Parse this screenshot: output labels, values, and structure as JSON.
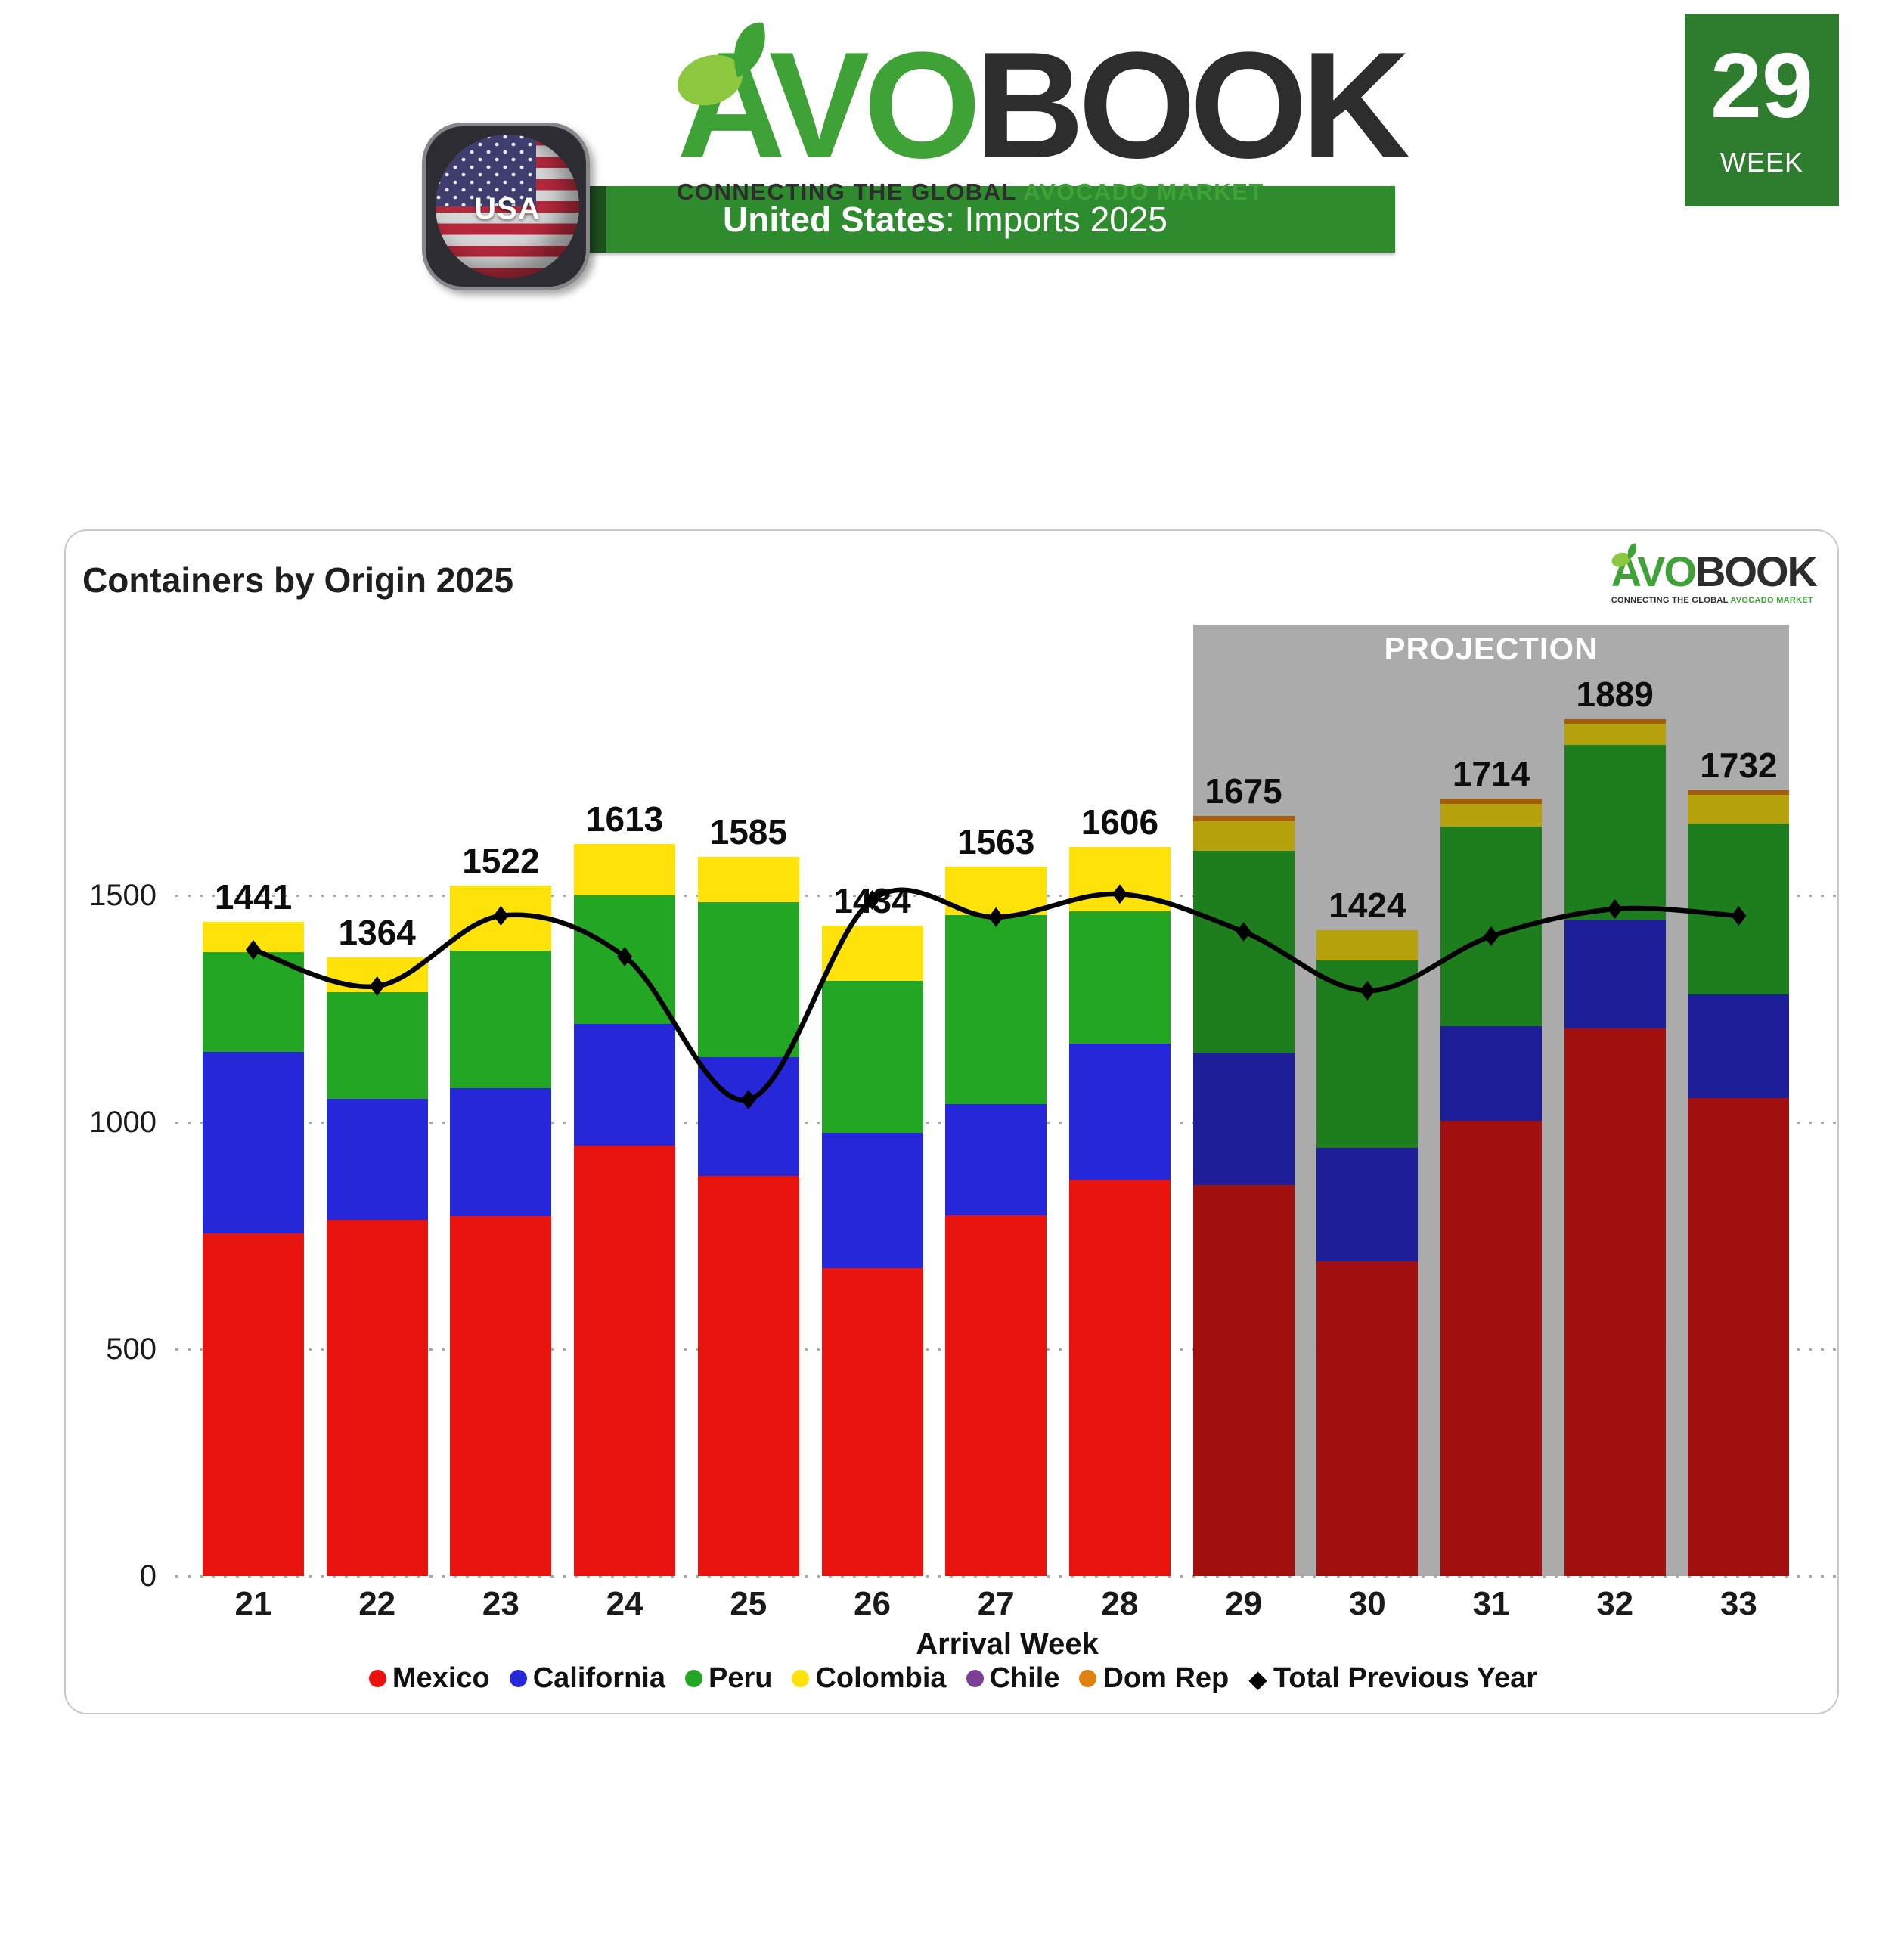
{
  "header": {
    "logo": {
      "avo": "AVO",
      "book": "BOOK",
      "tagline_dark": "CONNECTING THE GLOBAL",
      "tagline_green": "AVOCADO MARKET"
    },
    "banner": {
      "bold": "United States",
      "rest": ": Imports 2025"
    },
    "flag_label": "USA",
    "week_badge": {
      "number": "29",
      "label": "WEEK"
    }
  },
  "chart_data": {
    "type": "bar",
    "stacked": true,
    "title": "Containers by Origin 2025",
    "xlabel": "Arrival Week",
    "ylabel": "",
    "ylim": [
      0,
      2100
    ],
    "yticks": [
      0,
      500,
      1000,
      1500
    ],
    "grid": "dotted-horizontal",
    "legend_position": "bottom",
    "categories": [
      21,
      22,
      23,
      24,
      25,
      26,
      27,
      28,
      29,
      30,
      31,
      32,
      33
    ],
    "totals": [
      1441,
      1364,
      1522,
      1613,
      1585,
      1434,
      1563,
      1606,
      1675,
      1424,
      1714,
      1889,
      1732
    ],
    "projection_weeks": [
      29,
      30,
      31,
      32,
      33
    ],
    "projection_label": "PROJECTION",
    "projection_bg": "#ababab",
    "series": [
      {
        "name": "Mexico",
        "color": "#e9130d",
        "proj_color": "#a20f0f",
        "values": [
          755,
          785,
          793,
          949,
          881,
          679,
          795,
          873,
          862,
          694,
          1003,
          1207,
          1054
        ]
      },
      {
        "name": "California",
        "color": "#2527d9",
        "proj_color": "#1e1e99",
        "values": [
          400,
          267,
          282,
          268,
          262,
          297,
          245,
          300,
          291,
          250,
          209,
          239,
          228
        ]
      },
      {
        "name": "Peru",
        "color": "#23a623",
        "proj_color": "#1e7e1e",
        "values": [
          220,
          235,
          303,
          283,
          342,
          336,
          417,
          292,
          446,
          413,
          439,
          385,
          376
        ]
      },
      {
        "name": "Colombia",
        "color": "#ffe20a",
        "proj_color": "#b5a10b",
        "values": [
          66,
          77,
          144,
          113,
          100,
          122,
          106,
          141,
          64,
          67,
          51,
          47,
          63
        ]
      },
      {
        "name": "Chile",
        "color": "#7c3f97",
        "proj_color": "#5c2d73",
        "values": [
          0,
          0,
          0,
          0,
          0,
          0,
          0,
          0,
          0,
          0,
          0,
          0,
          0
        ]
      },
      {
        "name": "Dom Rep",
        "color": "#e0810f",
        "proj_color": "#a55d07",
        "values": [
          0,
          0,
          0,
          0,
          0,
          0,
          0,
          0,
          12,
          0,
          12,
          11,
          11
        ]
      }
    ],
    "line_series": {
      "name": "Total Previous Year",
      "color": "#000000",
      "marker": "diamond",
      "values": [
        1380,
        1300,
        1455,
        1365,
        1050,
        1490,
        1452,
        1503,
        1420,
        1290,
        1410,
        1470,
        1455
      ]
    }
  }
}
